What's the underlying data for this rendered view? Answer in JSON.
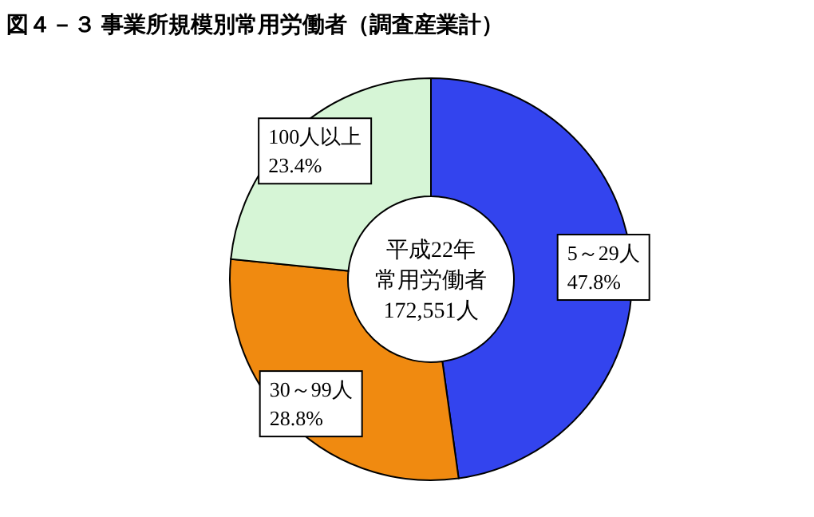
{
  "chart_data": {
    "type": "donut",
    "title": "図４－３ 事業所規模別常用労働者（調査産業計）",
    "categories": [
      "5～29人",
      "30～99人",
      "100人以上"
    ],
    "values": [
      47.8,
      28.8,
      23.4
    ],
    "value_labels": [
      "47.8%",
      "28.8%",
      "23.4%"
    ],
    "colors": [
      "#3344ee",
      "#f08a10",
      "#d6f5d6"
    ],
    "annotations": [
      "平成22年",
      "常用労働者",
      "172,551人"
    ],
    "legend": false
  }
}
